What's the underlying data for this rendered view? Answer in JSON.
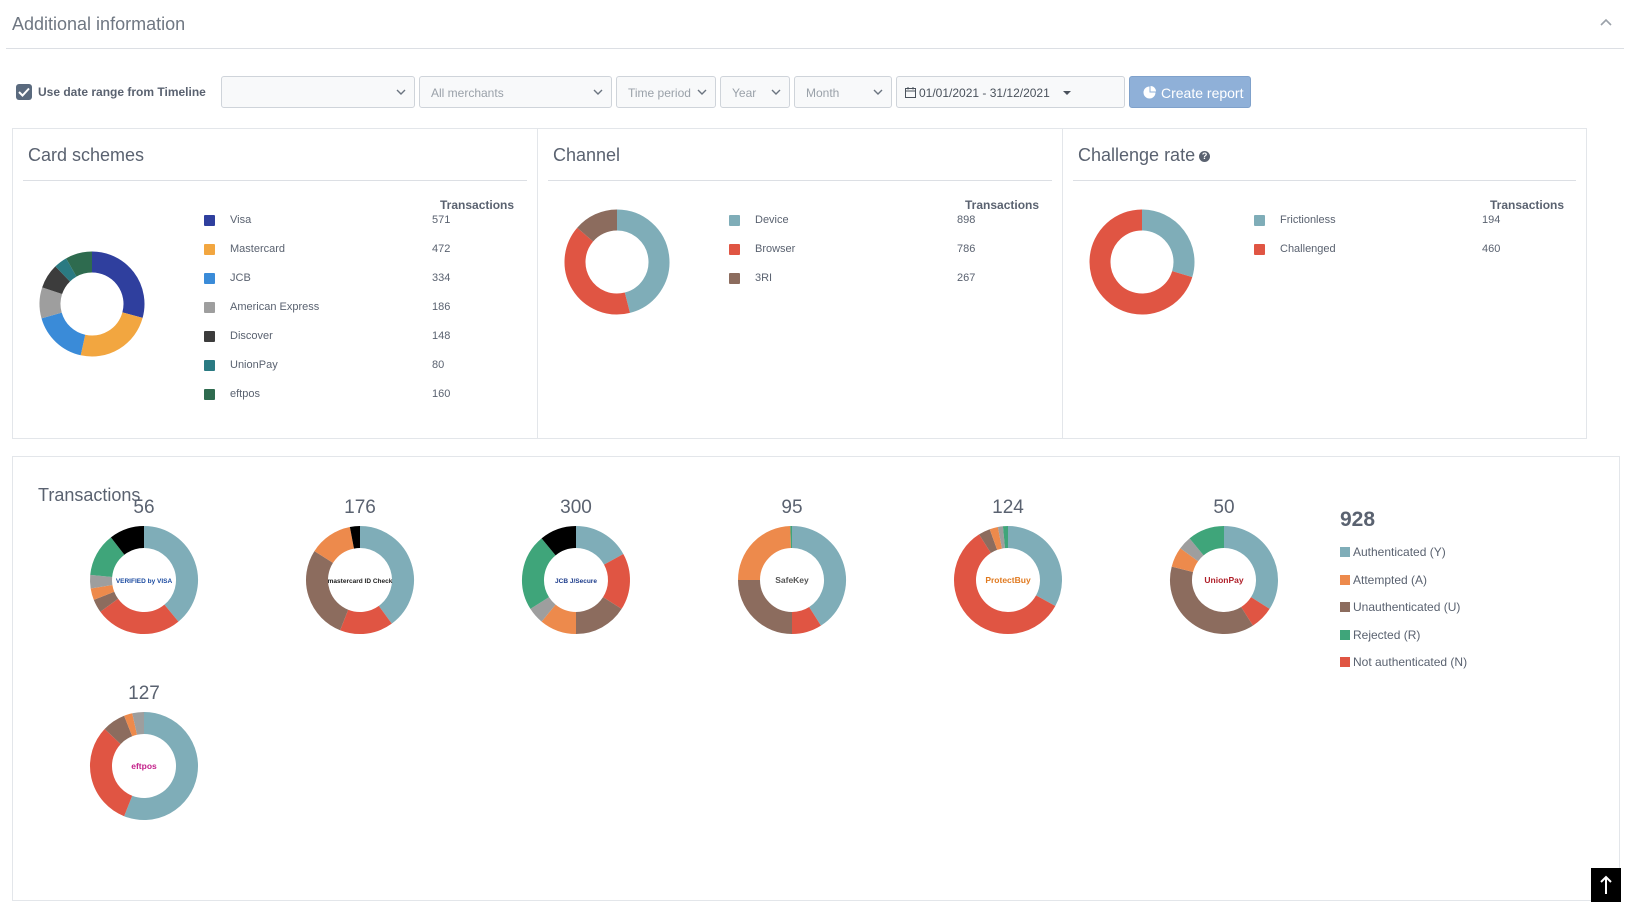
{
  "section": {
    "title": "Additional information"
  },
  "filters": {
    "use_timeline_label": "Use date range from Timeline",
    "select1": "",
    "merchants": "All merchants",
    "time_period": "Time period",
    "year": "Year",
    "month": "Month",
    "date_range": "01/01/2021 - 31/12/2021",
    "create_report": "Create report"
  },
  "card_schemes": {
    "title": "Card schemes",
    "column": "Transactions",
    "items": [
      {
        "label": "Visa",
        "value": "571",
        "color": "#2f3f9e"
      },
      {
        "label": "Mastercard",
        "value": "472",
        "color": "#f2a640"
      },
      {
        "label": "JCB",
        "value": "334",
        "color": "#3a8bd8"
      },
      {
        "label": "American Express",
        "value": "186",
        "color": "#9e9e9e"
      },
      {
        "label": "Discover",
        "value": "148",
        "color": "#3c3c3c"
      },
      {
        "label": "UnionPay",
        "value": "80",
        "color": "#2a7a82"
      },
      {
        "label": "eftpos",
        "value": "160",
        "color": "#2e6b4f"
      }
    ]
  },
  "channel": {
    "title": "Channel",
    "column": "Transactions",
    "items": [
      {
        "label": "Device",
        "value": "898",
        "color": "#7fadb8"
      },
      {
        "label": "Browser",
        "value": "786",
        "color": "#e05543"
      },
      {
        "label": "3RI",
        "value": "267",
        "color": "#8c6c5e"
      }
    ]
  },
  "challenge": {
    "title": "Challenge rate",
    "help": "?",
    "column": "Transactions",
    "items": [
      {
        "label": "Frictionless",
        "value": "194",
        "color": "#7fadb8"
      },
      {
        "label": "Challenged",
        "value": "460",
        "color": "#e05543"
      }
    ]
  },
  "transactions": {
    "title": "Transactions",
    "total": "928",
    "legend": [
      {
        "label": "Authenticated (Y)",
        "color": "#7fadb8"
      },
      {
        "label": "Attempted (A)",
        "color": "#ed8a4c"
      },
      {
        "label": "Unauthenticated (U)",
        "color": "#8c6c5e"
      },
      {
        "label": "Rejected (R)",
        "color": "#3fa57a"
      },
      {
        "label": "Not authenticated (N)",
        "color": "#e05543"
      }
    ],
    "schemes": [
      {
        "total": "56",
        "logo": "VERIFIED by VISA",
        "logo_icon": "verified-by-visa-logo",
        "segments": [
          0.39,
          0.26,
          0.04,
          0.035,
          0.04,
          0.13,
          0.105
        ],
        "colors": [
          "#7fadb8",
          "#e05543",
          "#8c6c5e",
          "#ed8a4c",
          "#9e9e9e",
          "#3fa57a",
          "#000000"
        ]
      },
      {
        "total": "176",
        "logo": "mastercard ID Check",
        "logo_icon": "mastercard-id-check-logo",
        "segments": [
          0.4,
          0.16,
          0.28,
          0.13,
          0.03
        ],
        "colors": [
          "#7fadb8",
          "#e05543",
          "#8c6c5e",
          "#ed8a4c",
          "#000000"
        ]
      },
      {
        "total": "300",
        "logo": "JCB J/Secure",
        "logo_icon": "jcb-jsecure-logo",
        "segments": [
          0.17,
          0.17,
          0.16,
          0.11,
          0.05,
          0.23,
          0.11
        ],
        "colors": [
          "#7fadb8",
          "#e05543",
          "#8c6c5e",
          "#ed8a4c",
          "#9e9e9e",
          "#3fa57a",
          "#000000"
        ]
      },
      {
        "total": "95",
        "logo": "SafeKey",
        "logo_icon": "amex-safekey-logo",
        "segments": [
          0.41,
          0.09,
          0.25,
          0.245,
          0.005
        ],
        "colors": [
          "#7fadb8",
          "#e05543",
          "#8c6c5e",
          "#ed8a4c",
          "#3fa57a"
        ]
      },
      {
        "total": "124",
        "logo": "ProtectBuy",
        "logo_icon": "discover-protectbuy-logo",
        "segments": [
          0.33,
          0.58,
          0.035,
          0.025,
          0.015,
          0.015
        ],
        "colors": [
          "#7fadb8",
          "#e05543",
          "#8c6c5e",
          "#ed8a4c",
          "#9e9e9e",
          "#3fa57a"
        ]
      },
      {
        "total": "50",
        "logo": "UnionPay",
        "logo_icon": "unionpay-logo",
        "segments": [
          0.34,
          0.07,
          0.38,
          0.06,
          0.04,
          0.11
        ],
        "colors": [
          "#7fadb8",
          "#e05543",
          "#8c6c5e",
          "#ed8a4c",
          "#9e9e9e",
          "#3fa57a"
        ]
      },
      {
        "total": "127",
        "logo": "eftpos",
        "logo_icon": "eftpos-logo",
        "segments": [
          0.56,
          0.31,
          0.07,
          0.025,
          0.035
        ],
        "colors": [
          "#7fadb8",
          "#e05543",
          "#8c6c5e",
          "#ed8a4c",
          "#9e9e9e"
        ]
      }
    ]
  }
}
